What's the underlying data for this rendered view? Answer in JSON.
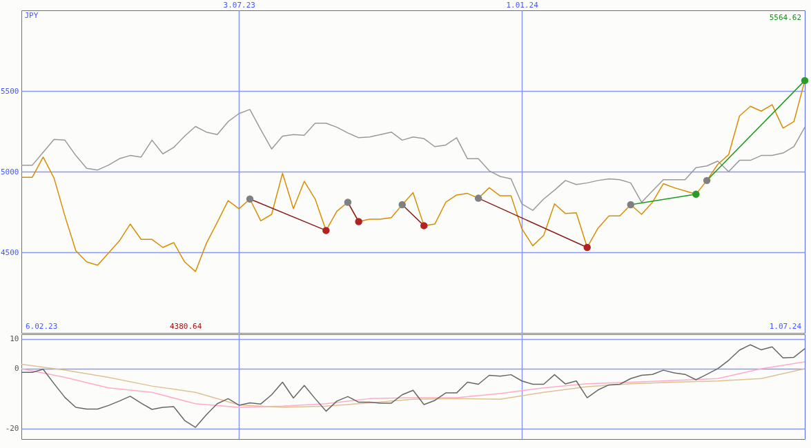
{
  "chart_data": [
    {
      "type": "line",
      "ylabel": "JPY",
      "xlim": [
        "2023-02-13",
        "2024-07-01"
      ],
      "xticks": [
        {
          "value": "2023-07-03",
          "label": "3.07.23"
        },
        {
          "value": "2024-01-01",
          "label": "1.01.24"
        }
      ],
      "ylim": [
        4000,
        6000
      ],
      "yticks": [
        4500,
        5000,
        5500
      ],
      "grid": true,
      "annotations": [
        "6.02.23",
        "4380.64",
        "1.07.24",
        "5564.62"
      ],
      "x": [
        "2023-02-13",
        "2023-02-20",
        "2023-02-27",
        "2023-03-06",
        "2023-03-13",
        "2023-03-20",
        "2023-03-27",
        "2023-04-03",
        "2023-04-10",
        "2023-04-17",
        "2023-04-24",
        "2023-05-01",
        "2023-05-08",
        "2023-05-15",
        "2023-05-22",
        "2023-05-29",
        "2023-06-05",
        "2023-06-12",
        "2023-06-19",
        "2023-06-26",
        "2023-07-03",
        "2023-07-10",
        "2023-07-17",
        "2023-07-24",
        "2023-07-31",
        "2023-08-07",
        "2023-08-14",
        "2023-08-21",
        "2023-08-28",
        "2023-09-04",
        "2023-09-11",
        "2023-09-18",
        "2023-09-25",
        "2023-10-02",
        "2023-10-09",
        "2023-10-16",
        "2023-10-23",
        "2023-10-30",
        "2023-11-06",
        "2023-11-13",
        "2023-11-20",
        "2023-11-27",
        "2023-12-04",
        "2023-12-11",
        "2023-12-18",
        "2023-12-25",
        "2024-01-01",
        "2024-01-08",
        "2024-01-15",
        "2024-01-22",
        "2024-01-29",
        "2024-02-05",
        "2024-02-12",
        "2024-02-19",
        "2024-02-26",
        "2024-03-04",
        "2024-03-11",
        "2024-03-18",
        "2024-03-25",
        "2024-04-01",
        "2024-04-08",
        "2024-04-15",
        "2024-04-22",
        "2024-04-29",
        "2024-05-06",
        "2024-05-13",
        "2024-05-20",
        "2024-05-27",
        "2024-06-03",
        "2024-06-10",
        "2024-06-17",
        "2024-06-24",
        "2024-07-01"
      ],
      "series": [
        {
          "color": "#999999",
          "values": [
            5040,
            5040,
            5120,
            5200,
            5195,
            5100,
            5020,
            5010,
            5040,
            5080,
            5100,
            5090,
            5195,
            5110,
            5150,
            5220,
            5280,
            5245,
            5230,
            5310,
            5360,
            5385,
            5260,
            5140,
            5220,
            5230,
            5225,
            5300,
            5300,
            5275,
            5240,
            5210,
            5215,
            5230,
            5245,
            5195,
            5215,
            5205,
            5155,
            5165,
            5210,
            5080,
            5080,
            5005,
            4970,
            4955,
            4800,
            4760,
            4830,
            4885,
            4945,
            4920,
            4930,
            4945,
            4955,
            4950,
            4930,
            4810,
            4880,
            4950,
            4950,
            4950,
            5025,
            5035,
            5065,
            5000,
            5070,
            5070,
            5100,
            5100,
            5115,
            5155,
            5275
          ]
        },
        {
          "color": "#d98c00",
          "values": [
            4965,
            4965,
            5090,
            4960,
            4725,
            4510,
            4440,
            4420,
            4495,
            4570,
            4675,
            4580,
            4580,
            4530,
            4560,
            4440,
            4380.64,
            4555,
            4685,
            4820,
            4770,
            4830,
            4695,
            4735,
            4990,
            4770,
            4940,
            4830,
            4635,
            4755,
            4810,
            4690,
            4705,
            4705,
            4715,
            4795,
            4870,
            4665,
            4675,
            4810,
            4855,
            4865,
            4835,
            4900,
            4850,
            4850,
            4645,
            4540,
            4605,
            4800,
            4740,
            4745,
            4530,
            4650,
            4725,
            4725,
            4795,
            4735,
            4810,
            4925,
            4900,
            4880,
            4860,
            4945,
            5045,
            5105,
            5345,
            5405,
            5375,
            5415,
            5270,
            5310,
            5564.62
          ]
        },
        {
          "color": "#8b1a1a",
          "x": [
            "2023-07-10",
            "2023-08-28"
          ],
          "values": [
            4830,
            4635
          ]
        },
        {
          "color": "#8b1a1a",
          "x": [
            "2023-09-11",
            "2023-09-18"
          ],
          "values": [
            4810,
            4690
          ]
        },
        {
          "color": "#8b1a1a",
          "x": [
            "2023-10-16",
            "2023-10-30"
          ],
          "values": [
            4795,
            4665
          ]
        },
        {
          "color": "#8b1a1a",
          "x": [
            "2023-12-04",
            "2024-02-12"
          ],
          "values": [
            4835,
            4530
          ]
        },
        {
          "color": "#1a9a1a",
          "x": [
            "2024-03-11",
            "2024-04-22"
          ],
          "values": [
            4795,
            4860
          ]
        },
        {
          "color": "#1a9a1a",
          "x": [
            "2024-04-29",
            "2024-07-01"
          ],
          "values": [
            4945,
            5564.62
          ]
        },
        {
          "type": "scatter",
          "marker": "circle",
          "color": "#808080",
          "x": [
            "2023-07-10",
            "2023-09-11",
            "2023-10-16",
            "2023-12-04",
            "2024-03-11",
            "2024-04-29"
          ],
          "values": [
            4830,
            4810,
            4795,
            4835,
            4795,
            4945
          ]
        },
        {
          "type": "scatter",
          "marker": "circle",
          "color": "#b22222",
          "x": [
            "2023-08-28",
            "2023-09-18",
            "2023-10-30",
            "2024-02-12"
          ],
          "values": [
            4635,
            4690,
            4665,
            4530
          ]
        },
        {
          "type": "scatter",
          "marker": "circle",
          "color": "#2a9a2a",
          "x": [
            "2024-04-22",
            "2024-07-01"
          ],
          "values": [
            4860,
            5564.62
          ]
        }
      ]
    },
    {
      "type": "line",
      "xlim": [
        "2023-02-13",
        "2024-07-01"
      ],
      "xticks": [
        {
          "value": "2023-07-03",
          "label": null
        },
        {
          "value": "2024-01-01",
          "label": null
        }
      ],
      "ylim": [
        -23.5,
        11.5
      ],
      "yticks": [
        -20,
        0,
        10
      ],
      "grid": true,
      "tick_labels": "y",
      "x": [
        "2023-02-13",
        "2023-02-20",
        "2023-02-27",
        "2023-03-06",
        "2023-03-13",
        "2023-03-20",
        "2023-03-27",
        "2023-04-03",
        "2023-04-10",
        "2023-04-17",
        "2023-04-24",
        "2023-05-01",
        "2023-05-08",
        "2023-05-15",
        "2023-05-22",
        "2023-05-29",
        "2023-06-05",
        "2023-06-12",
        "2023-06-19",
        "2023-06-26",
        "2023-07-03",
        "2023-07-10",
        "2023-07-17",
        "2023-07-24",
        "2023-07-31",
        "2023-08-07",
        "2023-08-14",
        "2023-08-21",
        "2023-08-28",
        "2023-09-04",
        "2023-09-11",
        "2023-09-18",
        "2023-09-25",
        "2023-10-02",
        "2023-10-09",
        "2023-10-16",
        "2023-10-23",
        "2023-10-30",
        "2023-11-06",
        "2023-11-13",
        "2023-11-20",
        "2023-11-27",
        "2023-12-04",
        "2023-12-11",
        "2023-12-18",
        "2023-12-25",
        "2024-01-01",
        "2024-01-08",
        "2024-01-15",
        "2024-01-22",
        "2024-01-29",
        "2024-02-05",
        "2024-02-12",
        "2024-02-19",
        "2024-02-26",
        "2024-03-04",
        "2024-03-11",
        "2024-03-18",
        "2024-03-25",
        "2024-04-01",
        "2024-04-08",
        "2024-04-15",
        "2024-04-22",
        "2024-04-29",
        "2024-05-06",
        "2024-05-13",
        "2024-05-20",
        "2024-05-27",
        "2024-06-03",
        "2024-06-10",
        "2024-06-17",
        "2024-06-24",
        "2024-07-01"
      ],
      "series": [
        {
          "color": "#ffaac8",
          "x": [
            "2023-02-13",
            "2023-03-13",
            "2023-04-10",
            "2023-05-08",
            "2023-06-05",
            "2023-07-03",
            "2023-07-31",
            "2023-08-28",
            "2023-09-25",
            "2023-10-23",
            "2023-11-20",
            "2023-12-18",
            "2024-01-15",
            "2024-02-12",
            "2024-03-11",
            "2024-04-08",
            "2024-05-06",
            "2024-06-03",
            "2024-07-01"
          ],
          "values": [
            0.0,
            -2.9,
            -6.4,
            -7.9,
            -11.7,
            -12.9,
            -12.5,
            -11.7,
            -10.0,
            -9.7,
            -9.7,
            -8.3,
            -6.4,
            -5.0,
            -4.5,
            -3.9,
            -3.3,
            0.0,
            2.3
          ]
        },
        {
          "color": "#e0c090",
          "x": [
            "2023-02-13",
            "2023-03-13",
            "2023-04-10",
            "2023-05-08",
            "2023-06-05",
            "2023-07-03",
            "2023-07-31",
            "2023-08-28",
            "2023-09-25",
            "2023-10-23",
            "2023-11-20",
            "2023-12-18",
            "2024-01-15",
            "2024-02-12",
            "2024-03-11",
            "2024-04-08",
            "2024-05-06",
            "2024-06-03",
            "2024-07-01"
          ],
          "values": [
            1.5,
            -0.5,
            -2.9,
            -5.8,
            -7.9,
            -12.1,
            -12.9,
            -12.5,
            -11.4,
            -10.2,
            -10.0,
            -10.2,
            -7.9,
            -6.0,
            -5.0,
            -4.5,
            -4.1,
            -3.3,
            0.0
          ]
        },
        {
          "color": "#666666",
          "values": [
            -1.2,
            -1.2,
            -0.2,
            -5.0,
            -9.6,
            -12.9,
            -13.5,
            -13.5,
            -12.3,
            -10.8,
            -9.2,
            -11.5,
            -13.6,
            -12.9,
            -12.7,
            -17.3,
            -19.6,
            -15.4,
            -11.7,
            -10.0,
            -12.2,
            -11.4,
            -11.8,
            -8.7,
            -4.5,
            -9.8,
            -5.6,
            -10.0,
            -14.2,
            -10.8,
            -9.3,
            -11.2,
            -11.2,
            -11.5,
            -11.5,
            -8.7,
            -7.2,
            -12.0,
            -10.6,
            -8.1,
            -8.1,
            -4.5,
            -5.2,
            -2.2,
            -2.5,
            -2.0,
            -4.1,
            -5.2,
            -5.2,
            -2.0,
            -5.1,
            -4.1,
            -9.7,
            -7.1,
            -5.4,
            -5.2,
            -3.3,
            -2.2,
            -1.9,
            -0.5,
            -1.4,
            -1.9,
            -3.7,
            -1.9,
            0.0,
            2.8,
            6.2,
            8.0,
            6.3,
            7.3,
            3.6,
            3.8,
            6.7
          ]
        }
      ]
    }
  ]
}
